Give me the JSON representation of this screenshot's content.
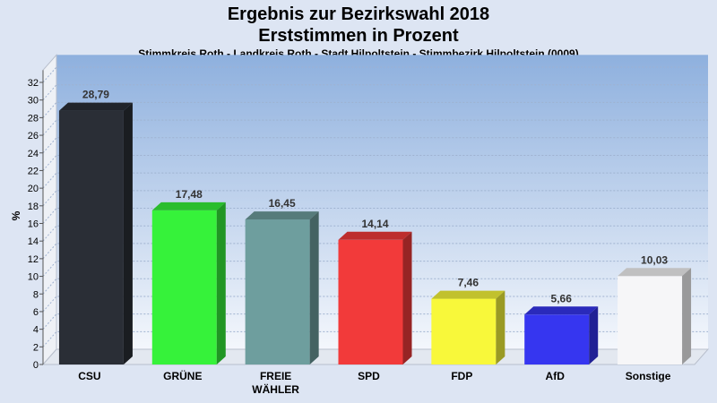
{
  "header": {
    "title_line1": "Ergebnis zur Bezirkswahl 2018",
    "title_line2": "Erststimmen in Prozent",
    "subtitle": "Stimmkreis Roth - Landkreis Roth - Stadt Hilpoltstein - Stimmbezirk Hilpoltstein (0009)"
  },
  "chart_data": {
    "type": "bar",
    "title": "Ergebnis zur Bezirkswahl 2018 Erststimmen in Prozent",
    "subtitle": "Stimmkreis Roth - Landkreis Roth - Stadt Hilpoltstein - Stimmbezirk Hilpoltstein (0009)",
    "xlabel": "",
    "ylabel": "%",
    "ylim": [
      0,
      32
    ],
    "ytick_step": 2,
    "grid": true,
    "categories": [
      "CSU",
      "GRÜNE",
      "FREIE WÄHLER",
      "SPD",
      "FDP",
      "AfD",
      "Sonstige"
    ],
    "category_lines": [
      [
        "CSU"
      ],
      [
        "GRÜNE"
      ],
      [
        "FREIE",
        "WÄHLER"
      ],
      [
        "SPD"
      ],
      [
        "FDP"
      ],
      [
        "AfD"
      ],
      [
        "Sonstige"
      ]
    ],
    "values": [
      28.79,
      17.48,
      16.45,
      14.14,
      7.46,
      5.66,
      10.03
    ],
    "value_labels": [
      "28,79",
      "17,48",
      "16,45",
      "14,14",
      "7,46",
      "5,66",
      "10,03"
    ],
    "colors": [
      "#2a2e36",
      "#36f23a",
      "#6e9e9e",
      "#f23a3a",
      "#f8f83a",
      "#3636f0",
      "#f6f6f8"
    ]
  }
}
